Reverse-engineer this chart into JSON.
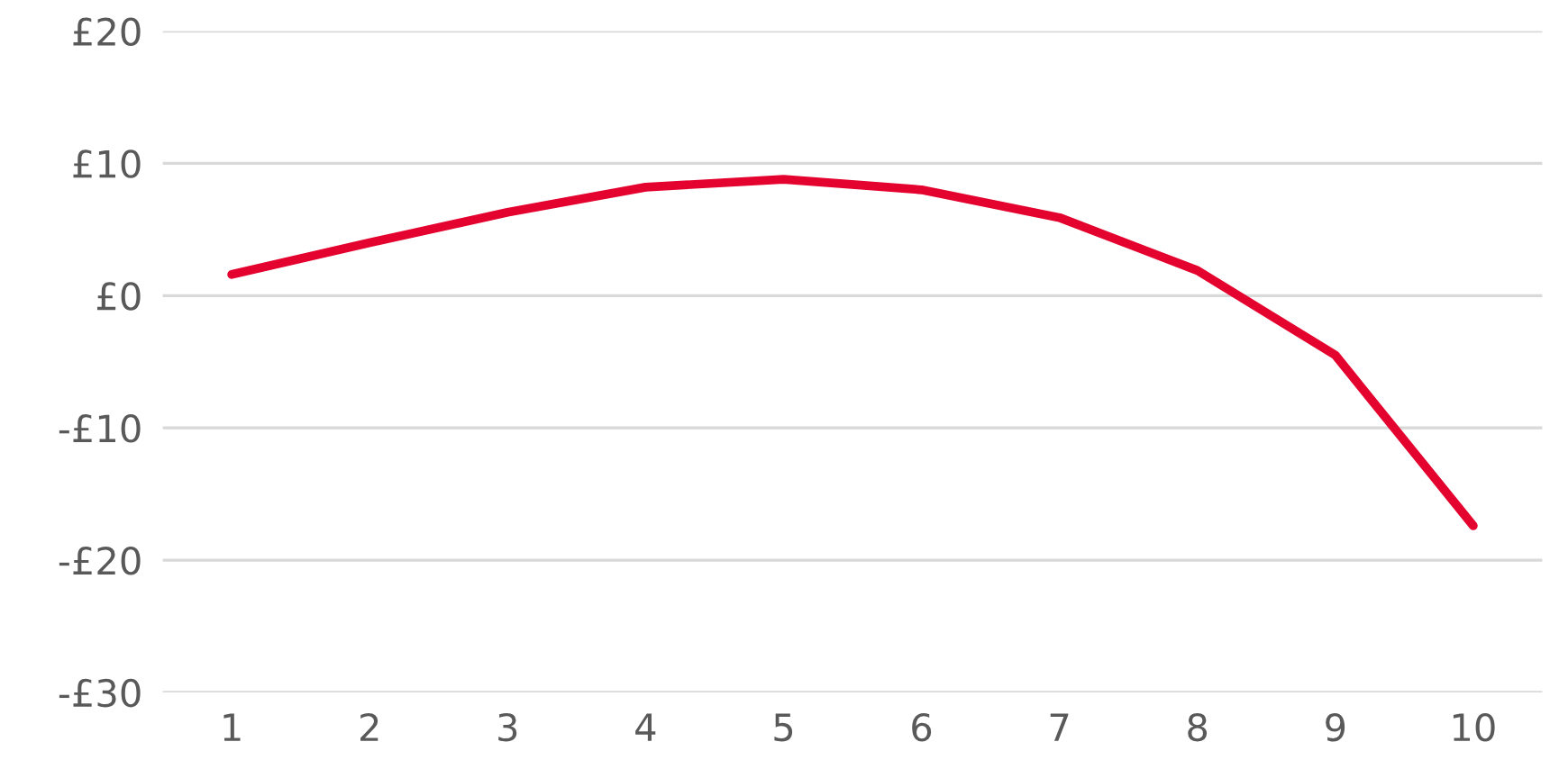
{
  "chart_data": {
    "type": "line",
    "categories": [
      "1",
      "2",
      "3",
      "4",
      "5",
      "6",
      "7",
      "8",
      "9",
      "10"
    ],
    "series": [
      {
        "color": "#e4032e",
        "values": [
          1.6,
          4.0,
          6.3,
          8.2,
          8.8,
          8.0,
          5.9,
          1.9,
          -4.5,
          -17.4
        ]
      }
    ],
    "ylim": [
      -30,
      20
    ],
    "yticks": [
      {
        "value": -30,
        "label": "-£30"
      },
      {
        "value": -20,
        "label": "-£20"
      },
      {
        "value": -10,
        "label": "-£10"
      },
      {
        "value": 0,
        "label": "£0"
      },
      {
        "value": 10,
        "label": "£10"
      },
      {
        "value": 20,
        "label": "£20"
      }
    ],
    "grid": "y",
    "marker": "none",
    "line_style": "solid",
    "legend": false
  }
}
